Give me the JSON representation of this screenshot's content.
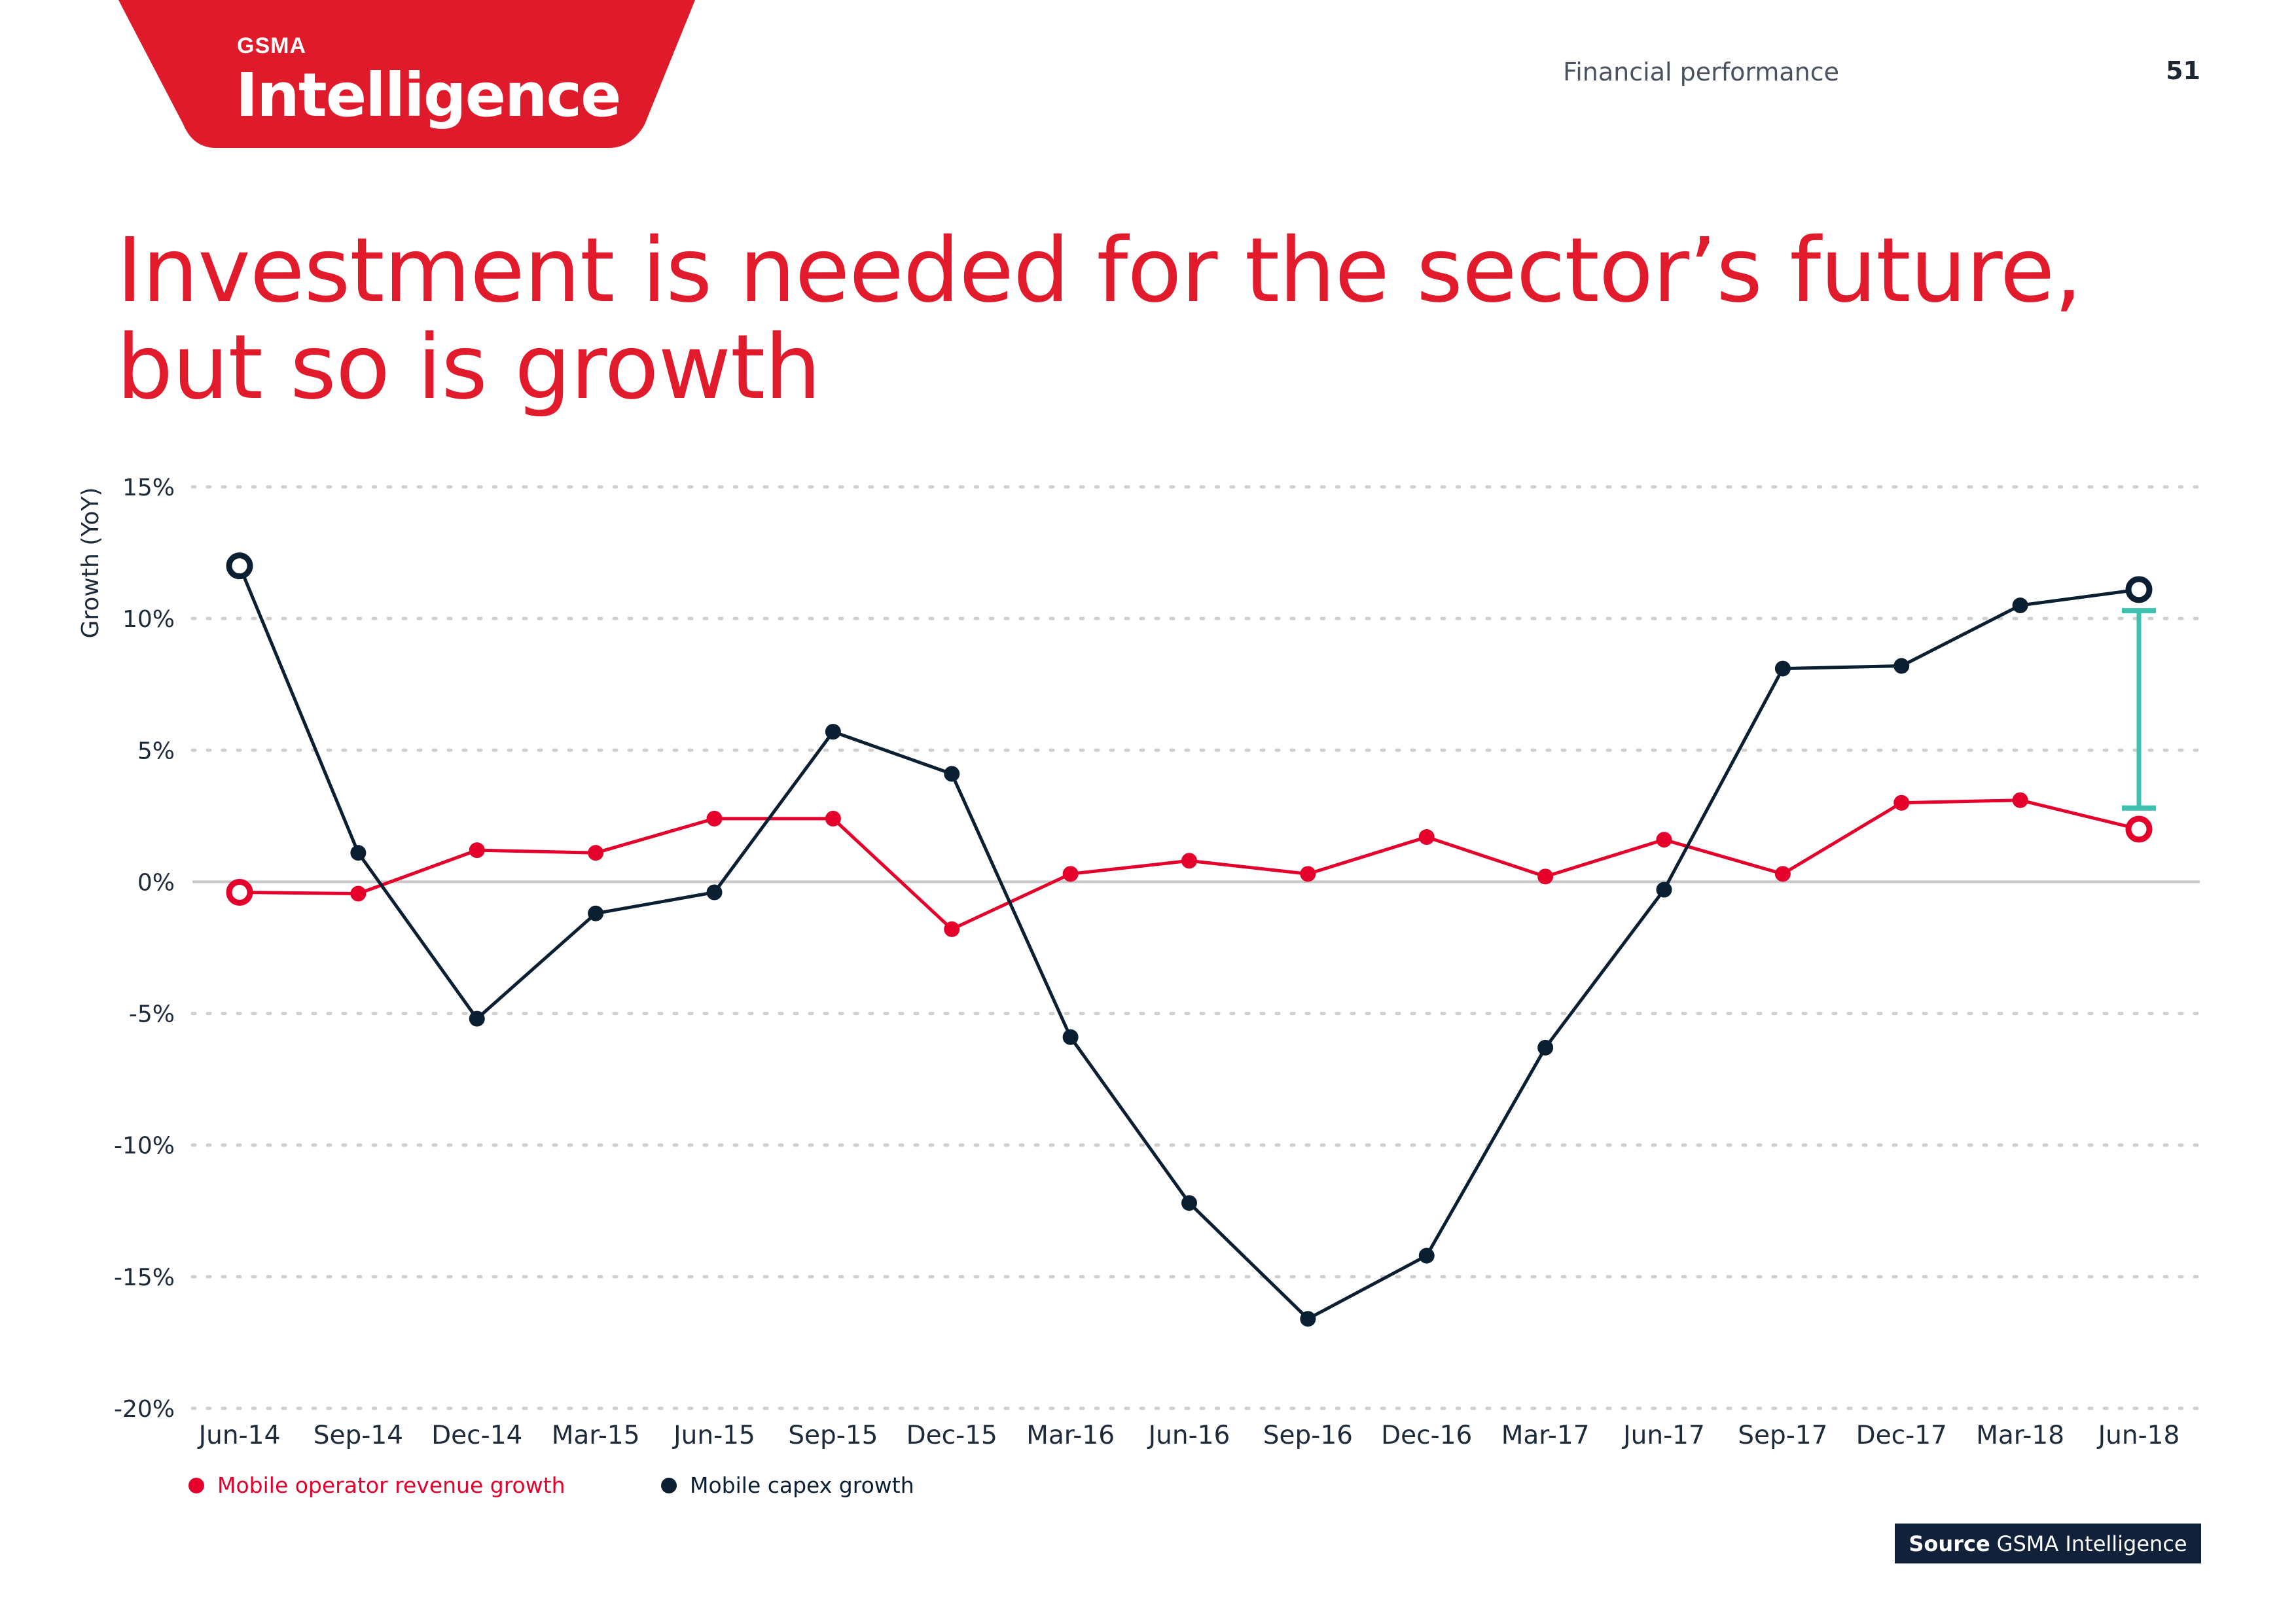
{
  "header": {
    "logo_top": "GSMA",
    "logo_main": "Intelligence",
    "section": "Financial performance",
    "page_number": "51"
  },
  "title_line1": "Investment is needed for the sector’s future,",
  "title_line2": "but so is growth",
  "source": {
    "label": "Source",
    "text": "GSMA Intelligence"
  },
  "colors": {
    "brand_red": "#E11B2C",
    "revenue": "#E4002B",
    "capex": "#0B1F33",
    "gap_bracket": "#3FC1B0",
    "source_bg": "#11213A"
  },
  "chart_data": {
    "type": "line",
    "ylabel": "Growth (YoY)",
    "ylim": [
      -20,
      15
    ],
    "yticks": [
      "-20%",
      "-15%",
      "-10%",
      "-5%",
      "0%",
      "5%",
      "10%",
      "15%"
    ],
    "ytick_values": [
      -20,
      -15,
      -10,
      -5,
      0,
      5,
      10,
      15
    ],
    "grid": "horizontal dotted",
    "legend_position": "bottom-left",
    "categories": [
      "Jun-14",
      "Sep-14",
      "Dec-14",
      "Mar-15",
      "Jun-15",
      "Sep-15",
      "Dec-15",
      "Mar-16",
      "Jun-16",
      "Sep-16",
      "Dec-16",
      "Mar-17",
      "Jun-17",
      "Sep-17",
      "Dec-17",
      "Mar-18",
      "Jun-18"
    ],
    "series": [
      {
        "name": "Mobile operator revenue growth",
        "color": "#E4002B",
        "values": [
          -0.4,
          -0.45,
          1.2,
          1.1,
          2.4,
          2.4,
          -1.8,
          0.3,
          0.8,
          0.3,
          1.7,
          0.2,
          1.6,
          0.3,
          3.0,
          3.1,
          2.0
        ]
      },
      {
        "name": "Mobile capex growth",
        "color": "#0B1F33",
        "values": [
          12.0,
          1.1,
          -5.2,
          -1.2,
          -0.4,
          5.7,
          4.1,
          -5.9,
          -12.2,
          -16.6,
          -14.2,
          -6.3,
          -0.3,
          8.1,
          8.2,
          10.5,
          11.1
        ]
      }
    ],
    "annotation": {
      "type": "gap-bracket",
      "category": "Jun-18",
      "from": 2.8,
      "to": 10.3
    }
  }
}
